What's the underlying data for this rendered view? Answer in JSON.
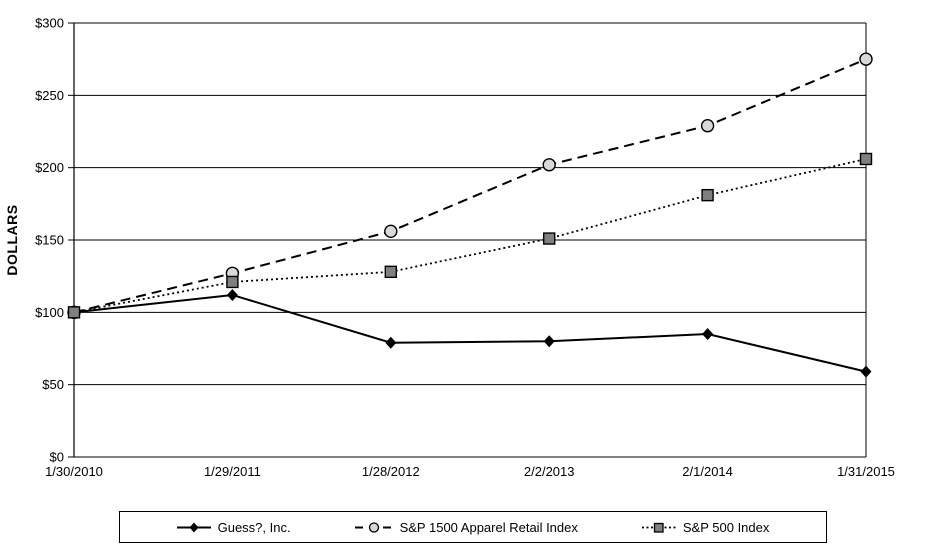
{
  "chart_data": {
    "type": "line",
    "title": "",
    "xlabel": "",
    "ylabel": "DOLLARS",
    "categories": [
      "1/30/2010",
      "1/29/2011",
      "1/28/2012",
      "2/2/2013",
      "2/1/2014",
      "1/31/2015"
    ],
    "y_tick_values": [
      0,
      50,
      100,
      150,
      200,
      250,
      300
    ],
    "y_tick_labels": [
      "$0",
      "$50",
      "$100",
      "$150",
      "$200",
      "$250",
      "$300"
    ],
    "ylim": [
      0,
      300
    ],
    "grid": "horizontal",
    "legend_position": "bottom",
    "series": [
      {
        "name": "Guess?, Inc.",
        "marker": "diamond",
        "line": "solid",
        "values": [
          100,
          112,
          79,
          80,
          85,
          59
        ]
      },
      {
        "name": "S&P 1500 Apparel Retail Index",
        "marker": "circle",
        "line": "dashed",
        "values": [
          100,
          127,
          156,
          202,
          229,
          275
        ]
      },
      {
        "name": "S&P 500 Index",
        "marker": "square",
        "line": "dotted",
        "values": [
          100,
          121,
          128,
          151,
          181,
          206
        ]
      }
    ]
  },
  "colors": {
    "line": "#000000",
    "grid": "#000000",
    "circle_fill": "#d9d9d9",
    "square_fill": "#808080",
    "diamond_fill": "#000000",
    "background": "#ffffff"
  }
}
